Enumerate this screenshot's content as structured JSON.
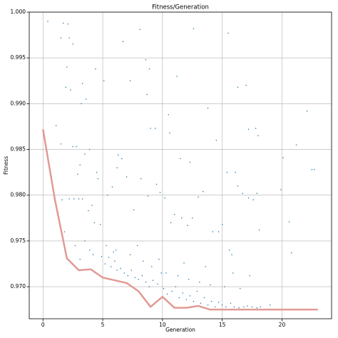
{
  "chart_data": {
    "type": "scatter",
    "title": "Fitness/Generation",
    "xlabel": "Generation",
    "ylabel": "Fitness",
    "xlim": [
      -1.15,
      24.15
    ],
    "ylim": [
      0.9665,
      1.0
    ],
    "xticks": [
      0,
      5,
      10,
      15,
      20
    ],
    "yticks": [
      {
        "value": 0.97,
        "label": "0.970"
      },
      {
        "value": 0.975,
        "label": "0.975"
      },
      {
        "value": 0.98,
        "label": "0.980"
      },
      {
        "value": 0.985,
        "label": "0.985"
      },
      {
        "value": 0.99,
        "label": "0.990"
      },
      {
        "value": 0.995,
        "label": "0.995"
      },
      {
        "value": 1.0,
        "label": "1.000"
      }
    ],
    "grid": true,
    "series": [
      {
        "type": "scatter",
        "color": "#1f77b4",
        "x": [
          0.4,
          1.7,
          2.1,
          2.2,
          1.5,
          2.5,
          2.0,
          1.9,
          2.3,
          3.3,
          3.6,
          3.2,
          4.4,
          5.1,
          6.7,
          8.1,
          8.6,
          8.9,
          11.2,
          12.6,
          15.5,
          7.3,
          8.7,
          10.5,
          13.8,
          16.3,
          17.0,
          22.1,
          21.2,
          20.1,
          22.5,
          22.7,
          1.1,
          1.5,
          2.5,
          2.8,
          3.5,
          3.9,
          2.9,
          3.1,
          4.5,
          4.6,
          6.3,
          6.6,
          9.0,
          9.4,
          10.6,
          11.5,
          12.3,
          14.5,
          15.4,
          16.1,
          17.2,
          17.8,
          18.0,
          19.9,
          20.6,
          20.8,
          1.6,
          2.2,
          2.6,
          3.0,
          3.3,
          3.8,
          4.1,
          4.3,
          4.8,
          5.4,
          5.8,
          6.2,
          7.0,
          7.6,
          8.2,
          8.8,
          9.5,
          9.8,
          10.2,
          10.7,
          11.0,
          11.6,
          12.1,
          12.5,
          13.0,
          13.4,
          14.2,
          14.7,
          15.0,
          15.6,
          15.8,
          16.3,
          16.7,
          17.2,
          17.6,
          17.9,
          18.1,
          1.8,
          2.7,
          3.1,
          3.5,
          3.9,
          4.2,
          4.9,
          5.2,
          5.5,
          5.7,
          6.0,
          6.2,
          6.5,
          6.8,
          7.1,
          7.4,
          7.7,
          8.0,
          8.3,
          8.6,
          8.9,
          9.2,
          9.6,
          9.9,
          10.1,
          10.4,
          10.8,
          11.1,
          11.4,
          11.7,
          12.0,
          12.3,
          12.6,
          12.9,
          13.2,
          13.5,
          13.8,
          14.1,
          14.4,
          14.7,
          15.0,
          15.3,
          15.7,
          16.0,
          16.4,
          16.8,
          17.1,
          17.5,
          17.9,
          18.2,
          5.3,
          6.1,
          7.3,
          8.4,
          9.1,
          10.3,
          11.3,
          12.2,
          13.1,
          14.0,
          15.2,
          16.5,
          5.9,
          7.9,
          9.7,
          11.8,
          13.6,
          15.9,
          17.3,
          19.0
        ],
        "values": [
          0.999,
          0.9988,
          0.9987,
          0.9972,
          0.9972,
          0.9965,
          0.994,
          0.9918,
          0.9915,
          0.9922,
          0.9905,
          0.99,
          0.9938,
          0.9925,
          0.9968,
          0.9981,
          0.9948,
          0.9938,
          0.993,
          0.9982,
          0.9977,
          0.9925,
          0.991,
          0.9888,
          0.9895,
          0.9918,
          0.992,
          0.9892,
          0.9855,
          0.9841,
          0.9828,
          0.9828,
          0.9876,
          0.9856,
          0.9853,
          0.9853,
          0.9845,
          0.985,
          0.9823,
          0.9833,
          0.9825,
          0.9818,
          0.9844,
          0.984,
          0.9873,
          0.9873,
          0.9868,
          0.984,
          0.9836,
          0.986,
          0.9825,
          0.9825,
          0.9872,
          0.9873,
          0.9865,
          0.9806,
          0.9771,
          0.9737,
          0.9795,
          0.9796,
          0.9796,
          0.9796,
          0.9796,
          0.9783,
          0.9789,
          0.977,
          0.9768,
          0.98,
          0.9809,
          0.983,
          0.982,
          0.9784,
          0.9818,
          0.9799,
          0.9812,
          0.9803,
          0.9797,
          0.977,
          0.9779,
          0.9775,
          0.9767,
          0.9775,
          0.9798,
          0.9804,
          0.976,
          0.976,
          0.9768,
          0.974,
          0.9735,
          0.981,
          0.9802,
          0.9797,
          0.9795,
          0.9802,
          0.9762,
          0.976,
          0.9745,
          0.973,
          0.975,
          0.974,
          0.9735,
          0.9733,
          0.9725,
          0.9732,
          0.9722,
          0.9728,
          0.9718,
          0.972,
          0.9715,
          0.9712,
          0.9718,
          0.971,
          0.9708,
          0.9712,
          0.9705,
          0.97,
          0.9707,
          0.9703,
          0.9715,
          0.9698,
          0.9692,
          0.9695,
          0.97,
          0.9688,
          0.9693,
          0.9686,
          0.969,
          0.9684,
          0.9695,
          0.9682,
          0.9688,
          0.968,
          0.9684,
          0.9678,
          0.9683,
          0.968,
          0.9678,
          0.9682,
          0.9678,
          0.9677,
          0.9678,
          0.9679,
          0.9678,
          0.9677,
          0.9678,
          0.9745,
          0.974,
          0.9735,
          0.9728,
          0.9722,
          0.9715,
          0.9712,
          0.9708,
          0.9705,
          0.9702,
          0.97,
          0.9698,
          0.9738,
          0.9745,
          0.973,
          0.9726,
          0.9722,
          0.9715,
          0.9712,
          0.968
        ]
      },
      {
        "type": "line",
        "color": "#e29a94",
        "x": [
          0,
          1,
          2,
          3,
          4,
          5,
          6,
          7,
          8,
          9,
          10,
          11,
          12,
          13,
          14,
          15,
          16,
          17,
          18,
          19,
          20,
          21,
          22,
          23
        ],
        "values": [
          0.9872,
          0.9795,
          0.9731,
          0.9718,
          0.9719,
          0.971,
          0.9707,
          0.9704,
          0.9695,
          0.9678,
          0.9689,
          0.9677,
          0.9677,
          0.9679,
          0.9675,
          0.9675,
          0.9675,
          0.9675,
          0.9675,
          0.9675,
          0.9675,
          0.9675,
          0.9675,
          0.9675
        ]
      }
    ]
  }
}
